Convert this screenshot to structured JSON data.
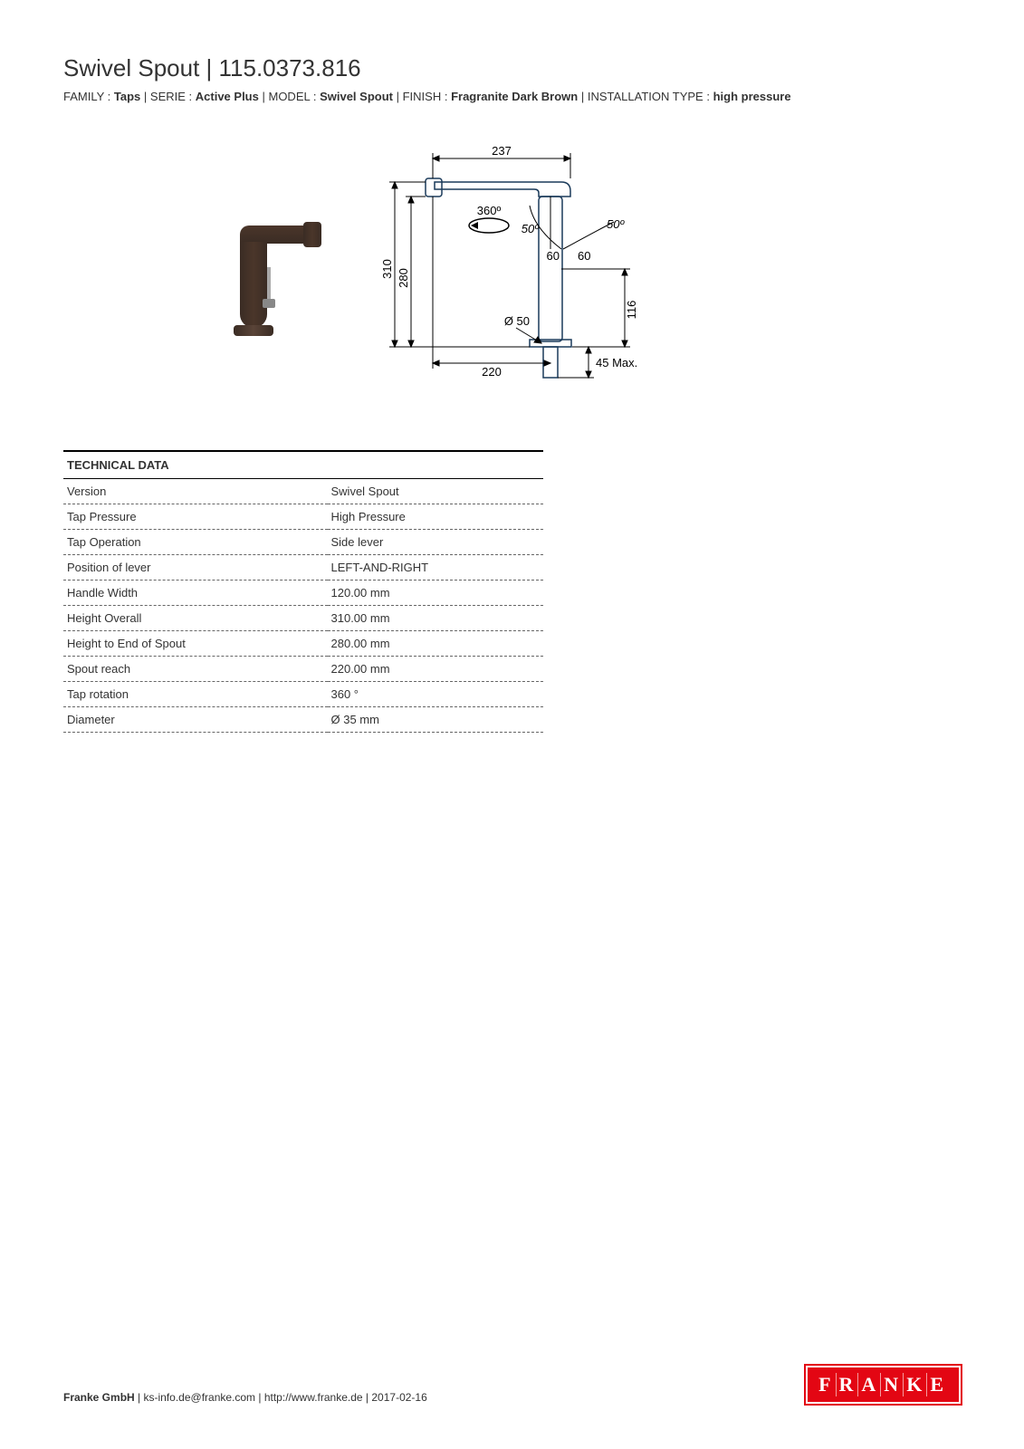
{
  "header": {
    "title": "Swivel Spout | 115.0373.816",
    "meta": [
      {
        "label": "FAMILY",
        "value": "Taps"
      },
      {
        "label": "SERIE",
        "value": "Active Plus"
      },
      {
        "label": "MODEL",
        "value": "Swivel Spout"
      },
      {
        "label": "FINISH",
        "value": "Fragranite Dark Brown"
      },
      {
        "label": "INSTALLATION TYPE",
        "value": "high pressure"
      }
    ]
  },
  "product_visual": {
    "body_color": "#3f2e24",
    "accent_color": "#a8a8a8"
  },
  "drawing": {
    "dims": {
      "top_width": "237",
      "height_overall": "310",
      "height_spout": "280",
      "base_reach": "220",
      "rotation": "360º",
      "lever_angle_left": "50º",
      "lever_angle_right": "50º",
      "lever_radius_l": "60",
      "lever_radius_r": "60",
      "hole_dia": "Ø 50",
      "below_height": "116",
      "thread": "45 Max."
    },
    "line_color": "#1a3a5a",
    "arrow_color": "#000000"
  },
  "tech_table": {
    "heading": "TECHNICAL DATA",
    "rows": [
      {
        "label": "Version",
        "value": "Swivel Spout"
      },
      {
        "label": "Tap Pressure",
        "value": "High Pressure"
      },
      {
        "label": "Tap Operation",
        "value": "Side lever"
      },
      {
        "label": "Position of lever",
        "value": "LEFT-AND-RIGHT"
      },
      {
        "label": "Handle Width",
        "value": "120.00 mm"
      },
      {
        "label": "Height Overall",
        "value": "310.00 mm"
      },
      {
        "label": "Height to End of Spout",
        "value": "280.00 mm"
      },
      {
        "label": "Spout reach",
        "value": "220.00 mm"
      },
      {
        "label": "Tap rotation",
        "value": "360 °"
      },
      {
        "label": "Diameter",
        "value": "Ø 35 mm"
      }
    ]
  },
  "footer": {
    "company": "Franke GmbH",
    "email": "ks-info.de@franke.com",
    "url": "http://www.franke.de",
    "date": "2017-02-16",
    "logo_text": "FRANKE",
    "logo_bg": "#e30613",
    "logo_fg": "#ffffff"
  }
}
